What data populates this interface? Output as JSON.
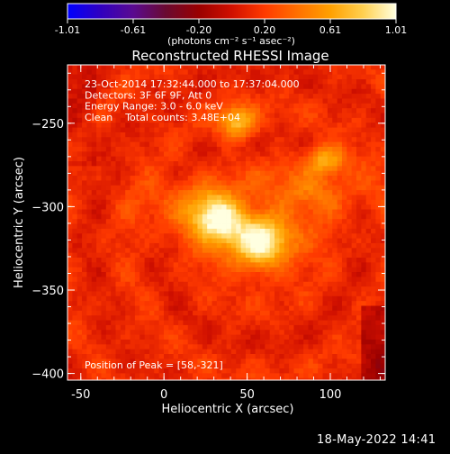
{
  "chart_data": {
    "type": "heatmap",
    "title": "Reconstructed RHESSI Image",
    "xlabel": "Heliocentric X (arcsec)",
    "ylabel": "Heliocentric Y (arcsec)",
    "xlim": [
      -58,
      133
    ],
    "ylim": [
      -404,
      -215
    ],
    "xticks": [
      -50,
      0,
      50,
      100
    ],
    "yticks": [
      -250,
      -300,
      -350,
      -400
    ],
    "colorbar": {
      "range": [
        -1.01,
        1.01
      ],
      "ticks": [
        "-1.01",
        "-0.61",
        "-0.20",
        "0.20",
        "0.61",
        "1.01"
      ],
      "unit_label": "(photons cm⁻² s⁻¹ asec⁻²)",
      "colormap": [
        "#0000ff",
        "#3000c0",
        "#5a0a90",
        "#6a0a30",
        "#9a0000",
        "#d01000",
        "#ff3a00",
        "#ff7000",
        "#ffa000",
        "#ffd050",
        "#ffffe0"
      ]
    },
    "annotations": [
      "23-Oct-2014 17:32:44.000 to 17:37:04.000",
      "Detectors: 3F 6F 9F, Att 0",
      "Energy Range: 3.0 - 6.0 keV",
      "Clean    Total counts: 3.48E+04"
    ],
    "peak_label": "Position of Peak = [58,-321]",
    "peak": {
      "x": 58,
      "y": -321
    },
    "sources": [
      {
        "x": 58,
        "y": -321,
        "amplitude": 1.0,
        "sx": 16,
        "sy": 12
      },
      {
        "x": 33,
        "y": -308,
        "amplitude": 0.85,
        "sx": 10,
        "sy": 10
      },
      {
        "x": 44,
        "y": -250,
        "amplitude": 0.7,
        "sx": 8,
        "sy": 7
      },
      {
        "x": 97,
        "y": -272,
        "amplitude": 0.6,
        "sx": 8,
        "sy": 6
      },
      {
        "x": 15,
        "y": -300,
        "amplitude": 0.35,
        "sx": 20,
        "sy": 12
      },
      {
        "x": 90,
        "y": -290,
        "amplitude": 0.3,
        "sx": 25,
        "sy": 12
      }
    ]
  },
  "timestamp": "18-May-2022 14:41"
}
